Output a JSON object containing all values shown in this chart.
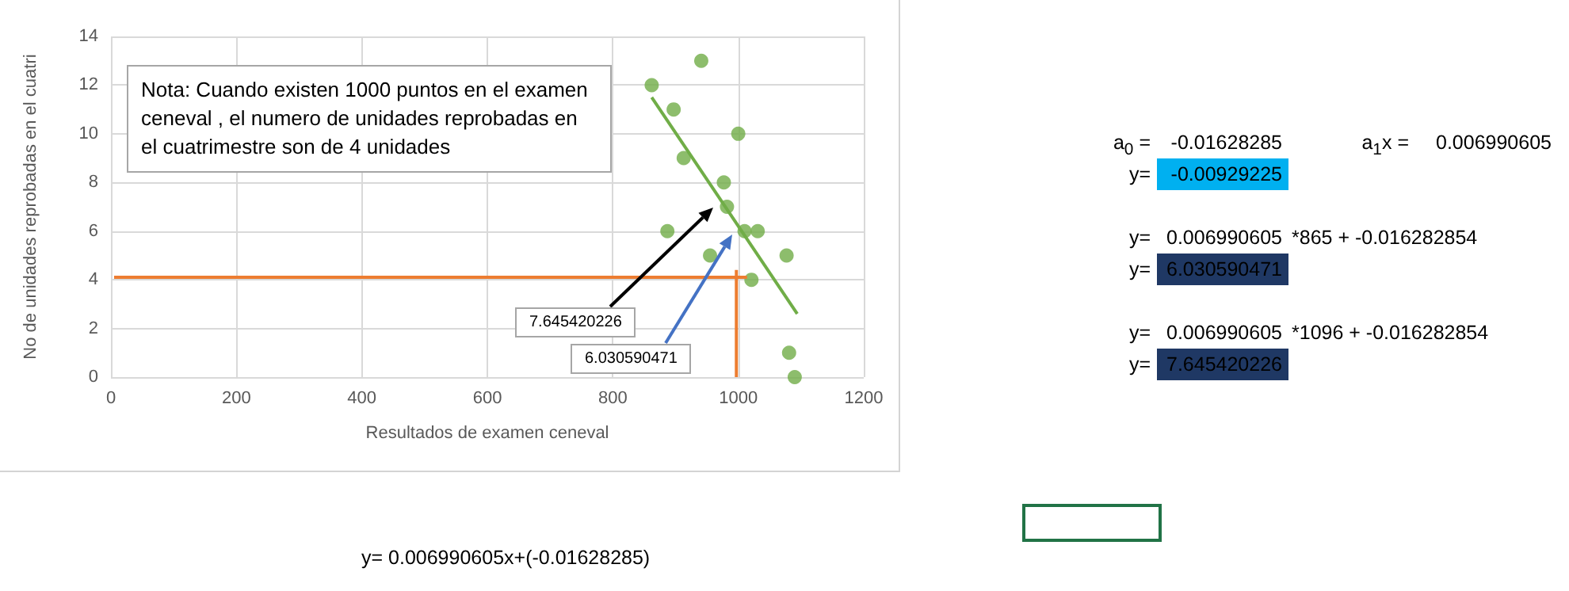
{
  "chart_data": {
    "type": "scatter",
    "xlabel": "Resultados de examen ceneval",
    "ylabel": "No de unidades reprobadas en el cuatri",
    "xlim": [
      0,
      1200
    ],
    "xticks": [
      0,
      200,
      400,
      600,
      800,
      1000,
      1200
    ],
    "ylim": [
      0,
      14
    ],
    "yticks": [
      0,
      2,
      4,
      6,
      8,
      10,
      12,
      14
    ],
    "grid": true,
    "marker": "circle",
    "series": [
      {
        "color": "#70ad47",
        "x": [
          862,
          941,
          897,
          1000,
          913,
          977,
          982,
          887,
          1010,
          1031,
          955,
          1077,
          1021,
          1081,
          1090
        ],
        "values": [
          12,
          13,
          11,
          10,
          9,
          8,
          7,
          6,
          6,
          6,
          5,
          5,
          4,
          1,
          0
        ]
      },
      {
        "type": "line",
        "marker": "none",
        "color": "#70ad47",
        "x": [
          862,
          1094
        ],
        "values": [
          11.5,
          2.6
        ]
      },
      {
        "type": "line",
        "marker": "none",
        "color": "#ed7d31",
        "x": [
          5,
          1014
        ],
        "values": [
          4.1,
          4.1
        ]
      },
      {
        "type": "line",
        "marker": "none",
        "color": "#ed7d31",
        "x": [
          997,
          997
        ],
        "values": [
          0,
          4.4
        ]
      }
    ],
    "annotations": [
      "Nota: Cuando existen 1000 puntos en el examen ceneval , el numero de unidades reprobadas en el cuatrimestre son  de 4 unidades",
      "7.645420226",
      "6.030590471",
      "a$_{0}$  =",
      "-0.01628285",
      "a$_{1}$x =",
      "0.006990605",
      "y=",
      "-0.00929225",
      "y=",
      "0.006990605",
      "*865 + -0.016282854",
      "y=",
      "6.030590471",
      "y=",
      "0.006990605",
      "*1096 + -0.016282854",
      "y=",
      "7.645420226",
      "y= 0.006990605x+(-0.01628285)"
    ]
  }
}
